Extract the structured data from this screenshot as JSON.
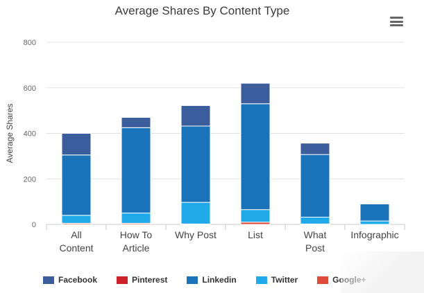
{
  "chart_data": {
    "type": "bar",
    "stacked": true,
    "title": "Average Shares By Content Type",
    "ylabel": "Average Shares",
    "xlabel": "",
    "ylim": [
      0,
      800
    ],
    "yticks": [
      0,
      200,
      400,
      600,
      800
    ],
    "categories": [
      "All\nContent",
      "How To\nArticle",
      "Why Post",
      "List",
      "What\nPost",
      "Infographic"
    ],
    "series": [
      {
        "name": "Facebook",
        "color": "#3b5d9c",
        "values": [
          95,
          45,
          90,
          90,
          50,
          0
        ]
      },
      {
        "name": "Pinterest",
        "color": "#cc2127",
        "values": [
          0,
          0,
          0,
          0,
          0,
          0
        ]
      },
      {
        "name": "Linkedin",
        "color": "#1a72b8",
        "values": [
          265,
          375,
          335,
          465,
          275,
          75
        ]
      },
      {
        "name": "Twitter",
        "color": "#21aaea",
        "values": [
          35,
          45,
          95,
          55,
          30,
          15
        ]
      },
      {
        "name": "Google+",
        "color": "#dd4b39",
        "values": [
          5,
          5,
          2,
          10,
          2,
          0
        ]
      }
    ],
    "grid": true,
    "legend_position": "bottom"
  },
  "menu_icon": "hamburger-menu-icon"
}
